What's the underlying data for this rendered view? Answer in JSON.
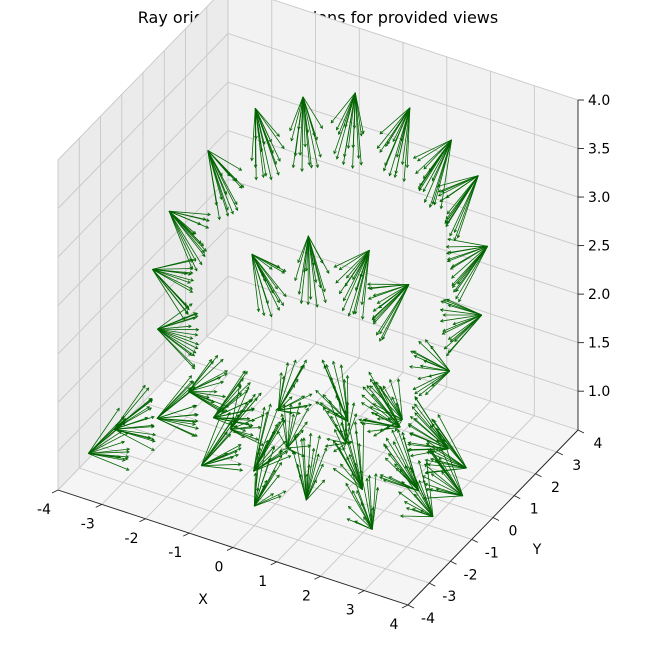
{
  "chart_data": {
    "type": "3d-quiver",
    "title": "Ray origins and directions for provided views",
    "xlabel": "X",
    "ylabel": "Y",
    "zlabel": "",
    "xlim": [
      -4,
      4
    ],
    "ylim": [
      -4,
      4
    ],
    "zlim": [
      0.6,
      4.0
    ],
    "x_ticks": [
      "-4",
      "-3",
      "-2",
      "-1",
      "0",
      "1",
      "2",
      "3",
      "4"
    ],
    "y_ticks": [
      "-4",
      "-3",
      "-2",
      "-1",
      "0",
      "1",
      "2",
      "3",
      "4"
    ],
    "z_ticks": [
      "1.0",
      "1.5",
      "2.0",
      "2.5",
      "3.0",
      "3.5",
      "4.0"
    ],
    "grid": true,
    "series": [
      {
        "color": "#006400",
        "description": "camera view ray bundles arranged on an upper ring (~z 3.3) and a lower ring (~z 0.8), radius ~3.6, each bundle pointing toward the scene center",
        "origins": [
          {
            "x": -2.6,
            "y": 2.4,
            "z": 3.3
          },
          {
            "x": -1.8,
            "y": 3.0,
            "z": 3.4
          },
          {
            "x": -0.8,
            "y": 3.4,
            "z": 3.5
          },
          {
            "x": 0.4,
            "y": 3.5,
            "z": 3.5
          },
          {
            "x": 1.5,
            "y": 3.2,
            "z": 3.4
          },
          {
            "x": 2.4,
            "y": 2.6,
            "z": 3.3
          },
          {
            "x": -3.2,
            "y": 1.4,
            "z": 3.0
          },
          {
            "x": -3.5,
            "y": 0.2,
            "z": 2.6
          },
          {
            "x": -3.3,
            "y": -1.0,
            "z": 2.3
          },
          {
            "x": -2.7,
            "y": -2.0,
            "z": 2.0
          },
          {
            "x": -1.6,
            "y": -2.8,
            "z": 1.7
          },
          {
            "x": -0.4,
            "y": -3.3,
            "z": 1.6
          },
          {
            "x": 0.9,
            "y": -3.3,
            "z": 1.6
          },
          {
            "x": 2.0,
            "y": -2.8,
            "z": 1.7
          },
          {
            "x": 2.9,
            "y": -2.0,
            "z": 1.9
          },
          {
            "x": 3.4,
            "y": -0.8,
            "z": 2.2
          },
          {
            "x": 3.5,
            "y": 0.5,
            "z": 2.5
          },
          {
            "x": 3.1,
            "y": 1.6,
            "z": 2.9
          },
          {
            "x": -2.0,
            "y": 1.0,
            "z": 2.2
          },
          {
            "x": -1.0,
            "y": 1.6,
            "z": 2.4
          },
          {
            "x": 0.3,
            "y": 1.8,
            "z": 2.4
          },
          {
            "x": 1.4,
            "y": 1.4,
            "z": 2.3
          },
          {
            "x": -3.4,
            "y": -2.6,
            "z": 1.0
          },
          {
            "x": -3.0,
            "y": -1.4,
            "z": 0.9
          },
          {
            "x": -2.2,
            "y": -0.4,
            "z": 0.8
          },
          {
            "x": -3.6,
            "y": -3.4,
            "z": 0.9
          },
          {
            "x": -1.2,
            "y": 0.6,
            "z": 0.8
          },
          {
            "x": 0.2,
            "y": 1.0,
            "z": 0.8
          },
          {
            "x": 1.2,
            "y": 1.4,
            "z": 0.8
          },
          {
            "x": 2.4,
            "y": 1.2,
            "z": 0.8
          },
          {
            "x": 3.2,
            "y": 0.4,
            "z": 0.9
          },
          {
            "x": 3.6,
            "y": -0.6,
            "z": 0.9
          },
          {
            "x": 2.6,
            "y": -0.6,
            "z": 0.8
          },
          {
            "x": 1.6,
            "y": -1.2,
            "z": 0.8
          },
          {
            "x": 0.8,
            "y": -2.2,
            "z": 0.8
          },
          {
            "x": -0.6,
            "y": -1.8,
            "z": 0.8
          },
          {
            "x": -1.6,
            "y": -2.2,
            "z": 0.8
          },
          {
            "x": 0.0,
            "y": -3.0,
            "z": 0.8
          },
          {
            "x": 2.6,
            "y": -2.8,
            "z": 0.9
          },
          {
            "x": 3.6,
            "y": -2.0,
            "z": 1.0
          }
        ]
      }
    ]
  }
}
